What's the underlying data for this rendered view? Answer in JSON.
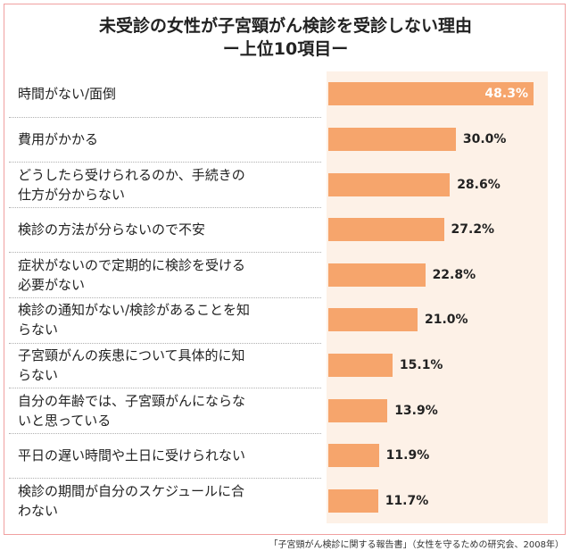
{
  "chart_data": {
    "type": "bar",
    "orientation": "horizontal",
    "title": "未受診の女性が子宮頸がん検診を受診しない理由",
    "subtitle": "ー上位10項目ー",
    "categories": [
      "時間がない/面倒",
      "費用がかかる",
      "どうしたら受けられるのか、手続きの仕方が分からない",
      "検診の方法が分らないので不安",
      "症状がないので定期的に検診を受ける必要がない",
      "検診の通知がない/検診があることを知らない",
      "子宮頸がんの疾患について具体的に知らない",
      "自分の年齢では、子宮頸がんにならないと思っている",
      "平日の遅い時間や土日に受けられない",
      "検診の期間が自分のスケジュールに合わない"
    ],
    "label_lines": [
      [
        "時間がない/面倒"
      ],
      [
        "費用がかかる"
      ],
      [
        "どうしたら受けられるのか、手続きの",
        "仕方が分からない"
      ],
      [
        "検診の方法が分らないので不安"
      ],
      [
        "症状がないので定期的に検診を受ける",
        "必要がない"
      ],
      [
        "検診の通知がない/検診があることを知",
        "らない"
      ],
      [
        "子宮頸がんの疾患について具体的に知",
        "らない"
      ],
      [
        "自分の年齢では、子宮頸がんにならな",
        "いと思っている"
      ],
      [
        "平日の遅い時間や土日に受けられない"
      ],
      [
        "検診の期間が自分のスケジュールに合",
        "わない"
      ]
    ],
    "values": [
      48.3,
      30.0,
      28.6,
      27.2,
      22.8,
      21.0,
      15.1,
      13.9,
      11.9,
      11.7
    ],
    "value_labels": [
      "48.3%",
      "30.0%",
      "28.6%",
      "27.2%",
      "22.8%",
      "21.0%",
      "15.1%",
      "13.9%",
      "11.9%",
      "11.7%"
    ],
    "xlim": [
      0,
      50
    ],
    "grid": false,
    "bar_color": "#f6a56c",
    "plot_background": "#fdf1e7"
  },
  "source": "「子宮頸がん検診に関する報告書」（女性を守るための研究会、2008年）"
}
